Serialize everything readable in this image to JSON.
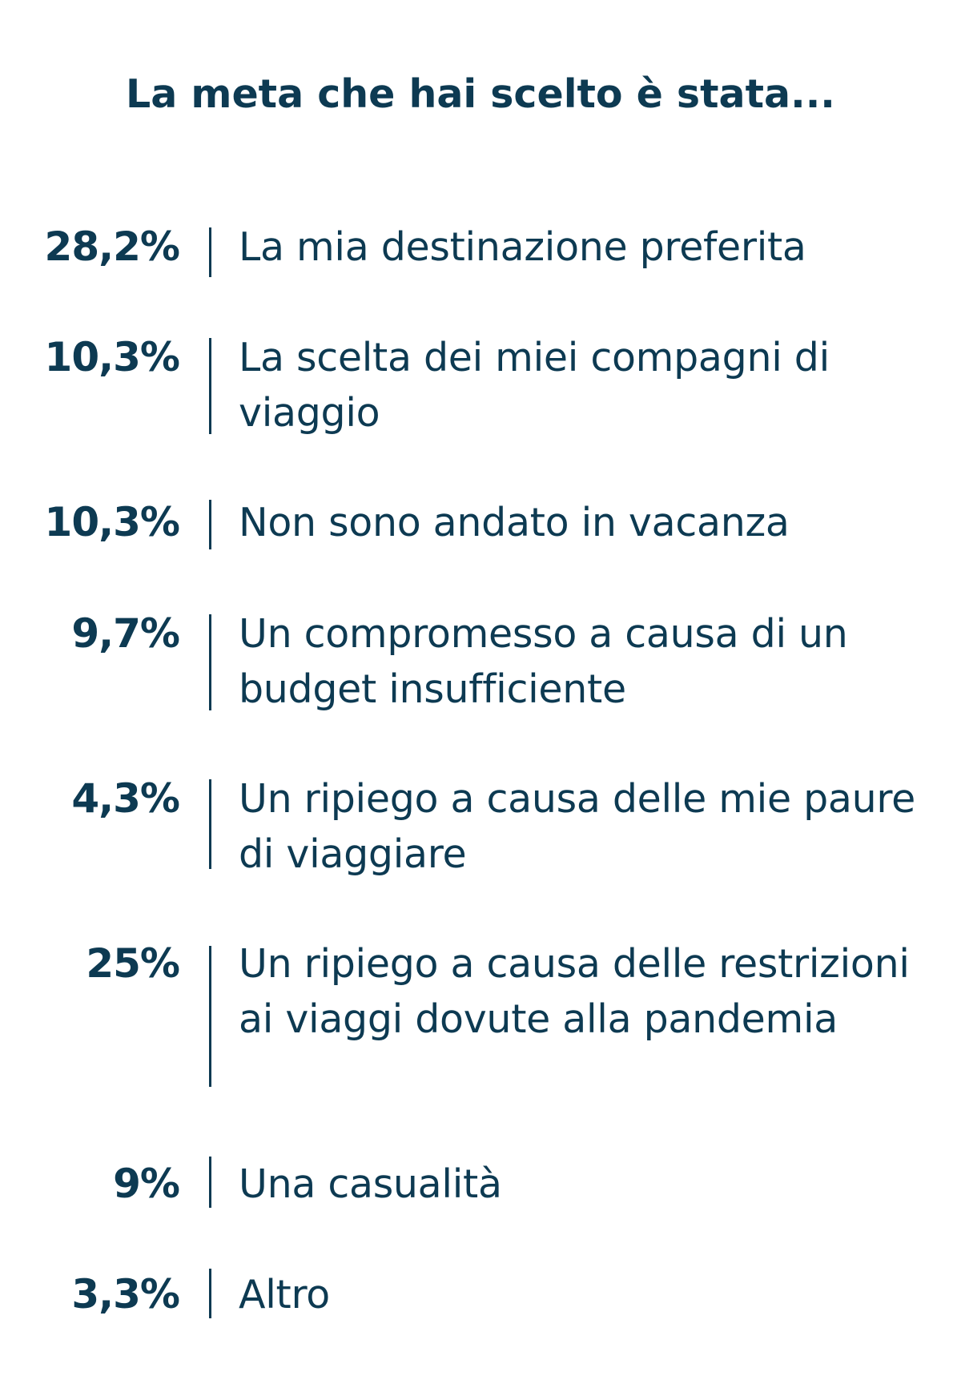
{
  "chart_data": {
    "type": "table",
    "title": "La meta che hai scelto è stata...",
    "rows": [
      {
        "value": "28,2%",
        "label": "La mia destinazione preferita"
      },
      {
        "value": "10,3%",
        "label": "La scelta dei miei compagni di viaggio"
      },
      {
        "value": "10,3%",
        "label": "Non sono andato in vacanza"
      },
      {
        "value": "9,7%",
        "label": "Un compromesso a causa di un budget insufficiente"
      },
      {
        "value": "4,3%",
        "label": "Un ripiego a causa delle mie paure di viaggiare"
      },
      {
        "value": "25%",
        "label": "Un ripiego a causa delle restrizioni ai viaggi dovute alla pandemia"
      },
      {
        "value": "9%",
        "label": "Una casualità"
      },
      {
        "value": "3,3%",
        "label": "Altro"
      }
    ]
  },
  "colors": {
    "text": "#0d3a52",
    "background": "#ffffff"
  }
}
